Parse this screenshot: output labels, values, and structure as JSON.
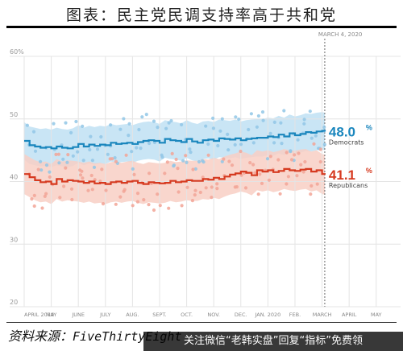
{
  "title": "图表：民主党民调支持率高于共和党",
  "source": {
    "label": "资料来源：",
    "name": "FiveThirtyEight"
  },
  "watermark": "关注微信“老韩实盘”回复“指标”免费领",
  "colors": {
    "dem": "#1a86bd",
    "rep": "#d63a20",
    "dem_band": "#bfe0f3",
    "rep_band": "#f8cfc4",
    "dem_dot": "#92c7e6",
    "rep_dot": "#f2a597",
    "grid": "#e4e4e4"
  },
  "chart_data": {
    "type": "line",
    "title": "",
    "xlabel": "",
    "ylabel": "",
    "ylim": [
      20,
      60
    ],
    "y_ticks": [
      20,
      30,
      40,
      50,
      60
    ],
    "y_tick_labels": [
      "20",
      "30",
      "40",
      "50",
      "60%"
    ],
    "x_ticks": [
      0,
      1,
      2,
      3,
      4,
      5,
      6,
      7,
      8,
      9,
      10,
      11,
      12,
      13
    ],
    "x_tick_labels": [
      "APRIL 2019",
      "MAY",
      "JUNE",
      "JULY",
      "AUG.",
      "SEPT.",
      "OCT.",
      "NOV.",
      "DEC.",
      "JAN. 2020",
      "FEB.",
      "MARCH",
      "APRIL",
      "MAY"
    ],
    "xlim": [
      0,
      13.9
    ],
    "date_marker": {
      "x": 11.1,
      "label": "MARCH 4, 2020"
    },
    "grid": true,
    "series": [
      {
        "name": "Democrats",
        "final_value": "48.0",
        "unit": "%",
        "color": "#1a86bd",
        "x": [
          0,
          0.2,
          0.4,
          0.6,
          0.8,
          1.0,
          1.2,
          1.4,
          1.6,
          1.8,
          2.0,
          2.2,
          2.4,
          2.6,
          2.8,
          3.0,
          3.2,
          3.4,
          3.6,
          3.8,
          4.0,
          4.2,
          4.4,
          4.6,
          4.8,
          5.0,
          5.2,
          5.4,
          5.6,
          5.8,
          6.0,
          6.2,
          6.4,
          6.6,
          6.8,
          7.0,
          7.2,
          7.4,
          7.6,
          7.8,
          8.0,
          8.2,
          8.4,
          8.6,
          8.8,
          9.0,
          9.2,
          9.4,
          9.6,
          9.8,
          10.0,
          10.2,
          10.4,
          10.6,
          10.8,
          11.0,
          11.1
        ],
        "y": [
          46.5,
          45.8,
          45.6,
          45.4,
          45.5,
          45.3,
          45.6,
          45.4,
          45.3,
          45.5,
          46.0,
          45.6,
          45.9,
          45.7,
          45.9,
          45.8,
          46.2,
          46.0,
          46.1,
          46.2,
          46.0,
          46.3,
          46.5,
          46.6,
          46.5,
          46.2,
          46.8,
          46.6,
          46.5,
          46.3,
          46.8,
          46.4,
          46.2,
          46.6,
          46.7,
          46.5,
          46.9,
          46.8,
          46.7,
          46.9,
          46.6,
          46.8,
          46.9,
          47.0,
          47.0,
          47.2,
          47.1,
          47.5,
          47.2,
          47.7,
          47.4,
          47.6,
          47.9,
          47.8,
          48.0,
          48.1,
          48.0
        ],
        "band_width": 3.0
      },
      {
        "name": "Republicans",
        "final_value": "41.1",
        "unit": "%",
        "color": "#d63a20",
        "x": [
          0,
          0.2,
          0.4,
          0.6,
          0.8,
          1.0,
          1.2,
          1.4,
          1.6,
          1.8,
          2.0,
          2.2,
          2.4,
          2.6,
          2.8,
          3.0,
          3.2,
          3.4,
          3.6,
          3.8,
          4.0,
          4.2,
          4.4,
          4.6,
          4.8,
          5.0,
          5.2,
          5.4,
          5.6,
          5.8,
          6.0,
          6.2,
          6.4,
          6.6,
          6.8,
          7.0,
          7.2,
          7.4,
          7.6,
          7.8,
          8.0,
          8.2,
          8.4,
          8.6,
          8.8,
          9.0,
          9.2,
          9.4,
          9.6,
          9.8,
          10.0,
          10.2,
          10.4,
          10.6,
          10.8,
          11.0,
          11.1
        ],
        "y": [
          41.2,
          40.7,
          40.2,
          39.9,
          40.0,
          39.6,
          40.4,
          40.0,
          40.2,
          40.1,
          40.0,
          39.8,
          40.0,
          39.7,
          39.8,
          39.6,
          39.9,
          40.0,
          39.8,
          40.0,
          40.1,
          39.8,
          39.6,
          39.9,
          39.8,
          39.7,
          39.8,
          40.1,
          39.9,
          40.0,
          40.2,
          40.1,
          40.1,
          40.4,
          40.3,
          40.6,
          40.4,
          40.8,
          41.1,
          41.3,
          41.6,
          41.4,
          41.0,
          41.8,
          41.6,
          41.8,
          41.5,
          41.7,
          42.0,
          41.8,
          41.7,
          41.9,
          42.0,
          41.6,
          41.8,
          41.2,
          41.1
        ],
        "band_width": 3.2
      }
    ]
  }
}
